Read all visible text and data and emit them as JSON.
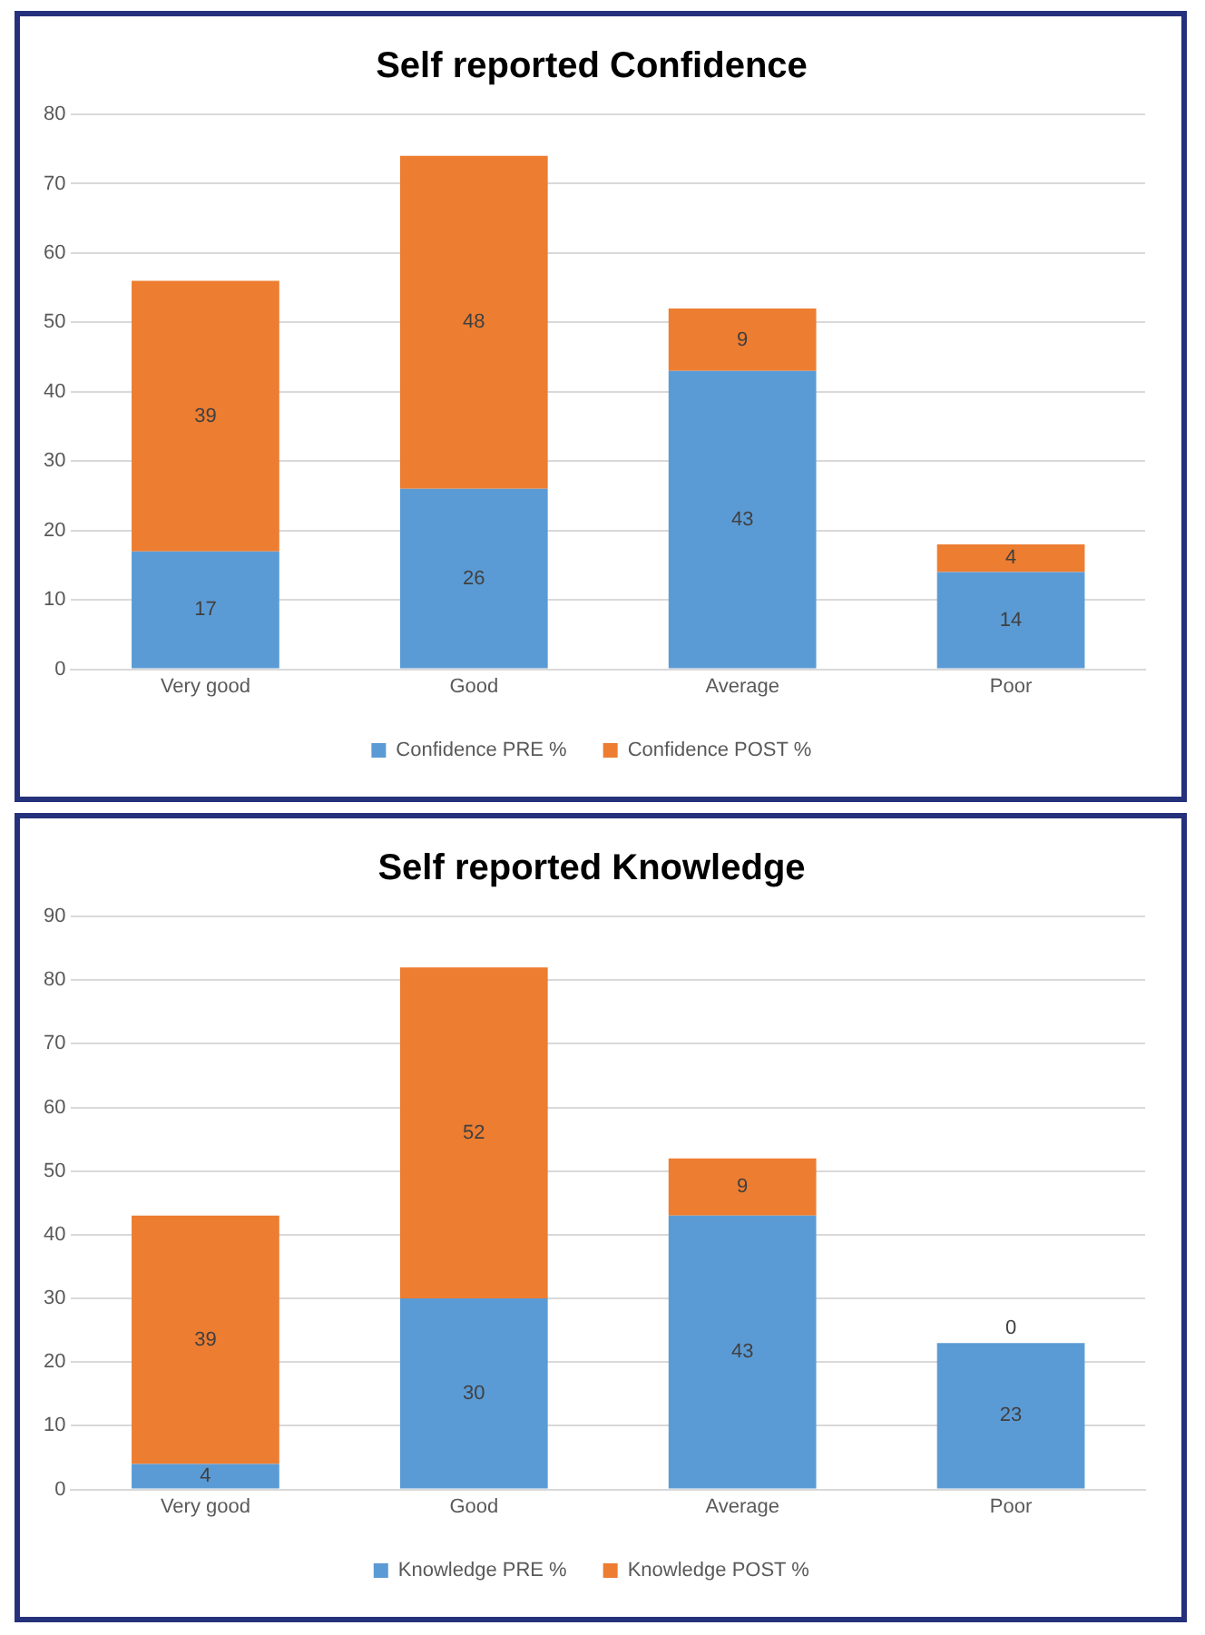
{
  "chart_data": [
    {
      "type": "bar",
      "title": "Self reported Confidence",
      "categories": [
        "Very good",
        "Good",
        "Average",
        "Poor"
      ],
      "stacked": true,
      "data_labels": true,
      "ylim": [
        0,
        80
      ],
      "yticks": [
        0,
        10,
        20,
        30,
        40,
        50,
        60,
        70,
        80
      ],
      "grid": "y",
      "legend": "bottom",
      "series": [
        {
          "name": "Confidence PRE %",
          "color": "#5b9bd5",
          "values": [
            17,
            26,
            43,
            14
          ]
        },
        {
          "name": "Confidence POST %",
          "color": "#ed7d31",
          "values": [
            39,
            48,
            9,
            4
          ]
        }
      ]
    },
    {
      "type": "bar",
      "title": "Self reported Knowledge",
      "categories": [
        "Very good",
        "Good",
        "Average",
        "Poor"
      ],
      "stacked": true,
      "data_labels": true,
      "ylim": [
        0,
        90
      ],
      "yticks": [
        0,
        10,
        20,
        30,
        40,
        50,
        60,
        70,
        80,
        90
      ],
      "grid": "y",
      "legend": "bottom",
      "series": [
        {
          "name": "Knowledge PRE %",
          "color": "#5b9bd5",
          "values": [
            4,
            30,
            43,
            23
          ]
        },
        {
          "name": "Knowledge POST %",
          "color": "#ed7d31",
          "values": [
            39,
            52,
            9,
            0
          ]
        }
      ]
    }
  ]
}
